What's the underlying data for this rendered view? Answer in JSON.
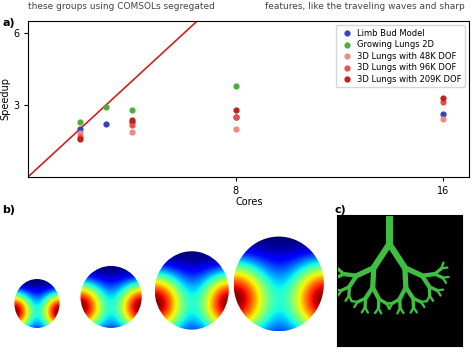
{
  "page": {
    "text_lines": [
      "these groups using COMSOLs segregated",
      "features, like the traveling waves and sharp"
    ],
    "panel_labels": [
      "a)",
      "b)",
      "c)"
    ]
  },
  "chart_data": {
    "type": "scatter",
    "x_label": "Cores",
    "y_label": "Speedup",
    "xlim": [
      0,
      17
    ],
    "ylim": [
      0,
      6.5
    ],
    "xticks": [
      8,
      16
    ],
    "yticks": [
      3,
      6
    ],
    "legend": "upper right",
    "series": [
      {
        "type": "line",
        "color": "#d42020",
        "x": [
          0,
          6.5
        ],
        "values": [
          0,
          6.5
        ]
      },
      {
        "name": "Limb Bud Model",
        "color": "#3a3fc0",
        "x": [
          2,
          3,
          4,
          8,
          16
        ],
        "values": [
          2.0,
          2.2,
          2.3,
          2.5,
          2.6
        ]
      },
      {
        "name": "Growing Lungs 2D",
        "color": "#4caf3a",
        "x": [
          2,
          3,
          4,
          8
        ],
        "values": [
          2.3,
          2.9,
          2.8,
          3.8
        ]
      },
      {
        "name": "3D Lungs with 48K DOF",
        "color": "#f08a80",
        "x": [
          2,
          4,
          8,
          16
        ],
        "values": [
          1.8,
          1.85,
          2.0,
          2.4
        ]
      },
      {
        "name": "3D Lungs with 96K DOF",
        "color": "#e8504a",
        "x": [
          2,
          4,
          8,
          16
        ],
        "values": [
          1.65,
          2.15,
          2.5,
          3.1
        ]
      },
      {
        "name": "3D Lungs with 209K DOF",
        "color": "#c41e1e",
        "x": [
          2,
          4,
          8,
          16
        ],
        "values": [
          1.55,
          2.35,
          2.8,
          3.3
        ]
      }
    ]
  }
}
